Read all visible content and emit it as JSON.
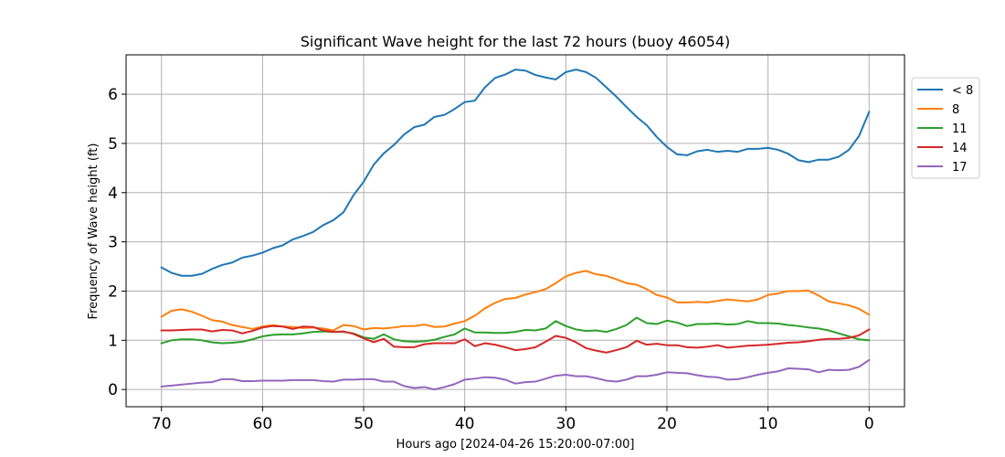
{
  "chart_data": {
    "type": "line",
    "title": "Significant Wave height for the last 72 hours (buoy 46054)",
    "xlabel": "Hours ago [2024-04-26 15:20:00-07:00]",
    "ylabel": "Frequency of Wave height (ft)",
    "xlim": [
      73.5,
      -3.5
    ],
    "ylim": [
      -0.35,
      6.8
    ],
    "xticks": [
      70,
      60,
      50,
      40,
      30,
      20,
      10,
      0
    ],
    "yticks": [
      0,
      1,
      2,
      3,
      4,
      5,
      6
    ],
    "grid": true,
    "legend_position": "right",
    "x": [
      70,
      69,
      68,
      67,
      66,
      65,
      64,
      63,
      62,
      61,
      60,
      59,
      58,
      57,
      56,
      55,
      54,
      53,
      52,
      51,
      50,
      49,
      48,
      47,
      46,
      45,
      44,
      43,
      42,
      41,
      40,
      39,
      38,
      37,
      36,
      35,
      34,
      33,
      32,
      31,
      30,
      29,
      28,
      27,
      26,
      25,
      24,
      23,
      22,
      21,
      20,
      19,
      18,
      17,
      16,
      15,
      14,
      13,
      12,
      11,
      10,
      9,
      8,
      7,
      6,
      5,
      4,
      3,
      2,
      1,
      0
    ],
    "series": [
      {
        "name": "< 8",
        "color": "#1f77b4",
        "values": [
          2.48,
          2.37,
          2.31,
          2.31,
          2.35,
          2.45,
          2.53,
          2.58,
          2.68,
          2.72,
          2.78,
          2.87,
          2.93,
          3.05,
          3.12,
          3.2,
          3.34,
          3.44,
          3.6,
          3.95,
          4.22,
          4.57,
          4.8,
          4.97,
          5.18,
          5.33,
          5.38,
          5.54,
          5.58,
          5.7,
          5.84,
          5.87,
          6.14,
          6.33,
          6.4,
          6.5,
          6.48,
          6.39,
          6.34,
          6.3,
          6.45,
          6.5,
          6.45,
          6.33,
          6.14,
          5.95,
          5.74,
          5.54,
          5.37,
          5.13,
          4.93,
          4.78,
          4.76,
          4.84,
          4.87,
          4.83,
          4.85,
          4.83,
          4.89,
          4.89,
          4.91,
          4.87,
          4.79,
          4.66,
          4.62,
          4.67,
          4.67,
          4.73,
          4.87,
          5.15,
          5.64
        ]
      },
      {
        "name": "8",
        "color": "#ff7f0e",
        "values": [
          1.48,
          1.6,
          1.63,
          1.58,
          1.5,
          1.41,
          1.38,
          1.31,
          1.27,
          1.23,
          1.28,
          1.31,
          1.28,
          1.27,
          1.25,
          1.26,
          1.24,
          1.2,
          1.31,
          1.29,
          1.22,
          1.25,
          1.24,
          1.26,
          1.29,
          1.29,
          1.32,
          1.27,
          1.28,
          1.34,
          1.39,
          1.5,
          1.65,
          1.76,
          1.84,
          1.86,
          1.93,
          1.98,
          2.04,
          2.16,
          2.3,
          2.37,
          2.41,
          2.34,
          2.31,
          2.24,
          2.16,
          2.13,
          2.04,
          1.92,
          1.87,
          1.77,
          1.77,
          1.78,
          1.77,
          1.8,
          1.83,
          1.81,
          1.79,
          1.83,
          1.92,
          1.95,
          2.0,
          2.0,
          2.01,
          1.91,
          1.79,
          1.75,
          1.71,
          1.64,
          1.52
        ]
      },
      {
        "name": "11",
        "color": "#2ca02c",
        "values": [
          0.94,
          1.0,
          1.02,
          1.02,
          1.0,
          0.96,
          0.94,
          0.95,
          0.97,
          1.02,
          1.08,
          1.11,
          1.12,
          1.12,
          1.14,
          1.17,
          1.18,
          1.17,
          1.17,
          1.14,
          1.06,
          1.03,
          1.12,
          1.02,
          0.98,
          0.97,
          0.98,
          1.01,
          1.07,
          1.12,
          1.24,
          1.16,
          1.16,
          1.15,
          1.15,
          1.17,
          1.21,
          1.2,
          1.24,
          1.39,
          1.29,
          1.22,
          1.19,
          1.2,
          1.17,
          1.23,
          1.31,
          1.46,
          1.35,
          1.33,
          1.4,
          1.36,
          1.29,
          1.33,
          1.33,
          1.34,
          1.32,
          1.33,
          1.39,
          1.35,
          1.35,
          1.34,
          1.31,
          1.29,
          1.26,
          1.24,
          1.2,
          1.14,
          1.08,
          1.02,
          1.0
        ]
      },
      {
        "name": "14",
        "color": "#d62728",
        "values": [
          1.2,
          1.2,
          1.21,
          1.22,
          1.22,
          1.18,
          1.21,
          1.2,
          1.14,
          1.19,
          1.26,
          1.29,
          1.28,
          1.23,
          1.28,
          1.27,
          1.2,
          1.17,
          1.18,
          1.13,
          1.04,
          0.96,
          1.03,
          0.87,
          0.86,
          0.86,
          0.92,
          0.94,
          0.94,
          0.94,
          1.02,
          0.88,
          0.94,
          0.91,
          0.86,
          0.8,
          0.82,
          0.86,
          0.97,
          1.09,
          1.05,
          0.96,
          0.84,
          0.79,
          0.75,
          0.8,
          0.86,
          0.99,
          0.91,
          0.93,
          0.9,
          0.9,
          0.86,
          0.85,
          0.87,
          0.9,
          0.85,
          0.87,
          0.89,
          0.9,
          0.91,
          0.93,
          0.95,
          0.96,
          0.98,
          1.01,
          1.03,
          1.03,
          1.05,
          1.1,
          1.22
        ]
      },
      {
        "name": "17",
        "color": "#9467bd",
        "values": [
          0.06,
          0.08,
          0.1,
          0.12,
          0.14,
          0.15,
          0.21,
          0.21,
          0.17,
          0.17,
          0.18,
          0.18,
          0.18,
          0.19,
          0.19,
          0.19,
          0.17,
          0.16,
          0.2,
          0.2,
          0.21,
          0.21,
          0.16,
          0.16,
          0.07,
          0.03,
          0.05,
          0.0,
          0.05,
          0.11,
          0.2,
          0.22,
          0.25,
          0.24,
          0.2,
          0.12,
          0.15,
          0.16,
          0.22,
          0.28,
          0.3,
          0.27,
          0.27,
          0.23,
          0.18,
          0.16,
          0.2,
          0.27,
          0.27,
          0.3,
          0.35,
          0.34,
          0.33,
          0.29,
          0.26,
          0.25,
          0.2,
          0.21,
          0.25,
          0.3,
          0.34,
          0.37,
          0.43,
          0.42,
          0.41,
          0.35,
          0.4,
          0.39,
          0.4,
          0.46,
          0.6
        ]
      }
    ]
  }
}
